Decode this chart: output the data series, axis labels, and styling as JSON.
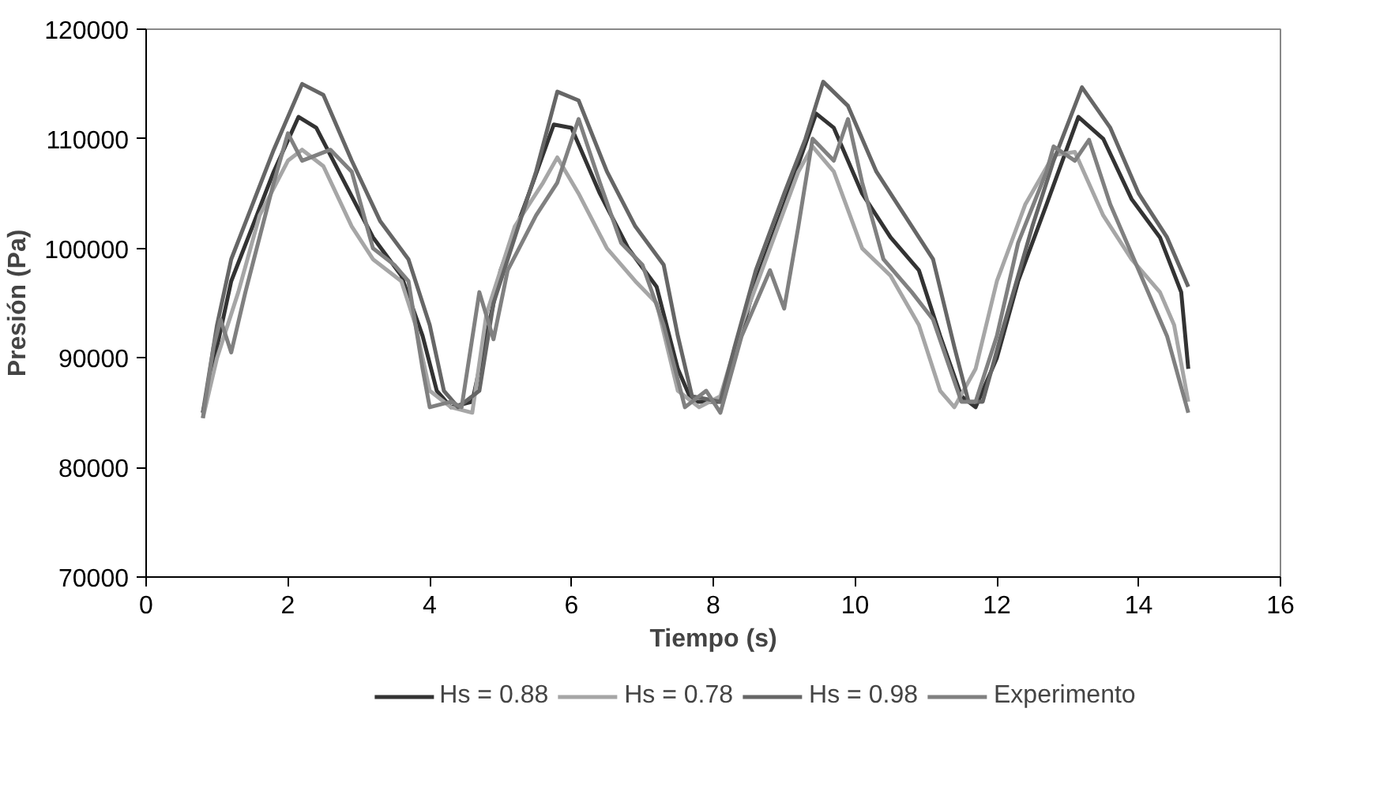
{
  "chart_data": {
    "type": "line",
    "xlabel": "Tiempo (s)",
    "ylabel": "Presión (Pa)",
    "xlim": [
      0,
      16
    ],
    "xticks": [
      0,
      2,
      4,
      6,
      8,
      10,
      12,
      14,
      16
    ],
    "ylim": [
      70000,
      120000
    ],
    "yticks": [
      70000,
      80000,
      90000,
      100000,
      110000,
      120000
    ],
    "grid": false,
    "legend": "bottom",
    "marker": "none",
    "line_style": "solid",
    "series": [
      {
        "name": "Hs = 0.88",
        "color": "#333333",
        "x": [
          0.8,
          1.0,
          1.2,
          1.5,
          1.8,
          2.15,
          2.4,
          2.8,
          3.2,
          3.6,
          3.9,
          4.1,
          4.3,
          4.6,
          4.8,
          5.0,
          5.4,
          5.75,
          6.0,
          6.4,
          6.8,
          7.2,
          7.5,
          7.7,
          8.1,
          8.3,
          8.6,
          9.0,
          9.45,
          9.7,
          10.1,
          10.5,
          10.9,
          11.2,
          11.5,
          11.7,
          12.0,
          12.3,
          12.7,
          13.15,
          13.5,
          13.9,
          14.3,
          14.6,
          14.7
        ],
        "values": [
          85000,
          91000,
          97000,
          102000,
          107000,
          112000,
          111000,
          106000,
          101000,
          97500,
          92000,
          87000,
          85500,
          86000,
          92000,
          98000,
          105000,
          111300,
          111000,
          105000,
          100000,
          96500,
          89000,
          86000,
          86000,
          90000,
          97000,
          104000,
          112300,
          111000,
          105000,
          101000,
          98000,
          92000,
          86500,
          85500,
          90000,
          97000,
          104000,
          112000,
          110000,
          104500,
          101000,
          96000,
          89000
        ]
      },
      {
        "name": "Hs = 0.78",
        "color": "#a6a6a6",
        "x": [
          0.8,
          1.0,
          1.3,
          1.6,
          2.0,
          2.2,
          2.5,
          2.9,
          3.2,
          3.6,
          3.8,
          4.0,
          4.3,
          4.6,
          4.8,
          5.2,
          5.6,
          5.8,
          6.1,
          6.5,
          6.9,
          7.2,
          7.5,
          7.8,
          8.1,
          8.4,
          8.8,
          9.2,
          9.4,
          9.7,
          10.1,
          10.5,
          10.9,
          11.2,
          11.4,
          11.7,
          12.0,
          12.4,
          12.8,
          13.1,
          13.5,
          13.9,
          14.3,
          14.5,
          14.7
        ],
        "values": [
          84500,
          90000,
          96000,
          103000,
          108000,
          109000,
          107500,
          102000,
          99000,
          97000,
          93000,
          87000,
          85500,
          85000,
          94000,
          102000,
          106000,
          108300,
          105000,
          100000,
          97000,
          95000,
          87000,
          85500,
          86500,
          93000,
          100000,
          107000,
          109300,
          107000,
          100000,
          97500,
          93000,
          87000,
          85500,
          89000,
          97000,
          104000,
          108500,
          108800,
          103000,
          99000,
          96000,
          93000,
          86000
        ]
      },
      {
        "name": "Hs = 0.98",
        "color": "#666666",
        "x": [
          0.8,
          1.0,
          1.2,
          1.5,
          1.8,
          2.2,
          2.5,
          2.9,
          3.3,
          3.7,
          4.0,
          4.2,
          4.4,
          4.7,
          4.9,
          5.2,
          5.5,
          5.8,
          6.1,
          6.5,
          6.9,
          7.3,
          7.5,
          7.7,
          8.1,
          8.3,
          8.6,
          9.0,
          9.3,
          9.55,
          9.9,
          10.3,
          10.7,
          11.1,
          11.4,
          11.6,
          11.8,
          12.1,
          12.5,
          12.8,
          13.2,
          13.6,
          14.0,
          14.4,
          14.7
        ],
        "values": [
          85000,
          93000,
          99000,
          104000,
          109000,
          115000,
          114000,
          108000,
          102500,
          99000,
          93000,
          87000,
          85500,
          87000,
          95000,
          101000,
          107000,
          114300,
          113500,
          107000,
          102000,
          98500,
          92000,
          86500,
          86000,
          91000,
          98000,
          105000,
          110000,
          115200,
          113000,
          107000,
          103000,
          99000,
          91000,
          86000,
          86000,
          93000,
          102000,
          108000,
          114700,
          111000,
          105000,
          101000,
          96500
        ]
      },
      {
        "name": "Experimento",
        "color": "#808080",
        "x": [
          0.8,
          0.95,
          1.05,
          1.2,
          1.4,
          1.6,
          1.8,
          2.0,
          2.2,
          2.6,
          2.9,
          3.2,
          3.5,
          3.7,
          3.9,
          4.0,
          4.3,
          4.45,
          4.7,
          4.9,
          5.1,
          5.5,
          5.8,
          6.1,
          6.4,
          6.7,
          7.0,
          7.3,
          7.6,
          7.9,
          8.1,
          8.4,
          8.8,
          9.0,
          9.2,
          9.4,
          9.7,
          9.9,
          10.1,
          10.4,
          10.8,
          11.1,
          11.5,
          11.7,
          12.0,
          12.3,
          12.7,
          12.8,
          13.1,
          13.3,
          13.6,
          14.0,
          14.4,
          14.7
        ],
        "values": [
          84500,
          91000,
          93500,
          90500,
          96000,
          101000,
          106000,
          110500,
          108000,
          109000,
          107000,
          100000,
          98500,
          97000,
          89000,
          85500,
          86000,
          85500,
          96000,
          91700,
          98000,
          103000,
          106000,
          111800,
          106000,
          100500,
          98500,
          93000,
          85500,
          87000,
          85000,
          92000,
          98000,
          94500,
          102000,
          110000,
          108000,
          111800,
          106000,
          99000,
          96000,
          93500,
          86000,
          86000,
          92000,
          100500,
          107000,
          109300,
          108000,
          109900,
          104000,
          98000,
          92000,
          85000
        ]
      }
    ]
  }
}
